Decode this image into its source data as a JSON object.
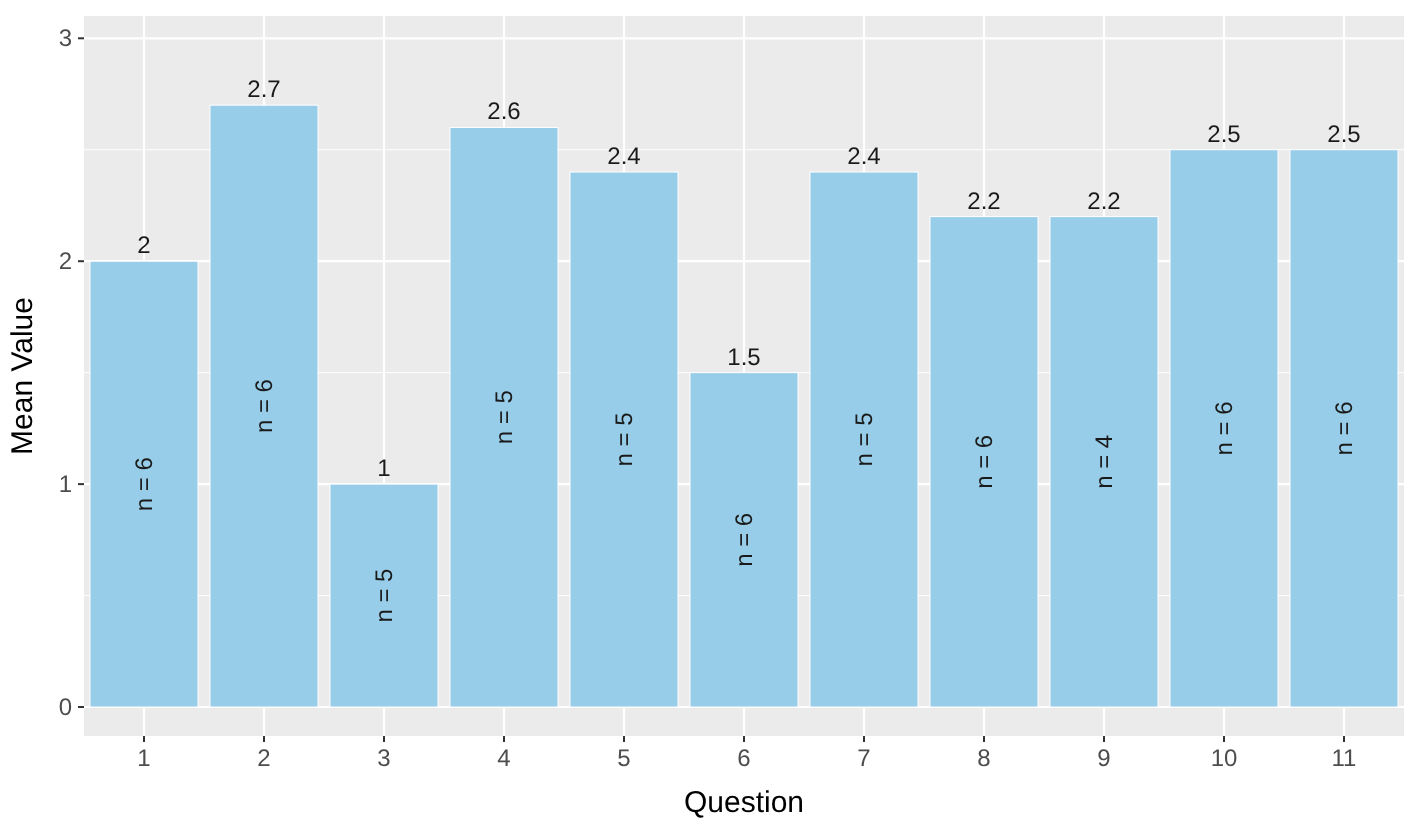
{
  "chart_data": {
    "type": "bar",
    "xlabel": "Question",
    "ylabel": "Mean Value",
    "categories": [
      "1",
      "2",
      "3",
      "4",
      "5",
      "6",
      "7",
      "8",
      "9",
      "10",
      "11"
    ],
    "values": [
      2,
      2.7,
      1,
      2.6,
      2.4,
      1.5,
      2.4,
      2.2,
      2.2,
      2.5,
      2.5
    ],
    "color": "#97cde9",
    "ylim": [
      -0.13,
      3.1
    ],
    "yticks": [
      0,
      1,
      2,
      3
    ],
    "grid": true,
    "data_labels": true,
    "annotations": [
      "n = 6",
      "n = 6",
      "n = 5",
      "n = 5",
      "n = 5",
      "n = 6",
      "n = 5",
      "n = 6",
      "n = 4",
      "n = 6",
      "n = 6"
    ]
  }
}
